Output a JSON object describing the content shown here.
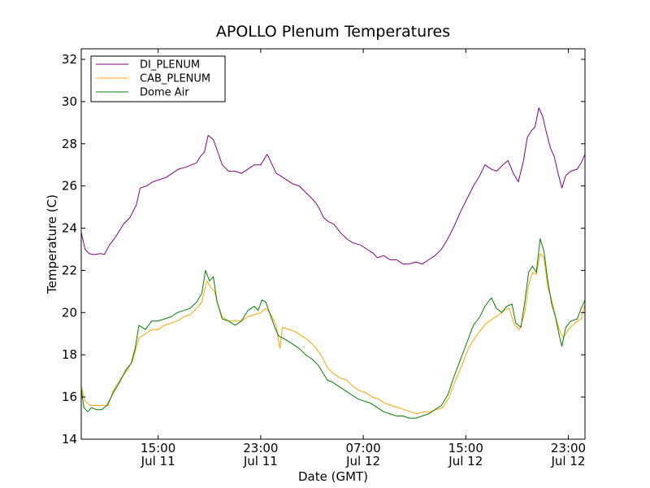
{
  "chart_data": {
    "type": "line",
    "title": "APOLLO Plenum Temperatures",
    "xlabel": "Date (GMT)",
    "ylabel": "Temperature (C)",
    "x_unit": "hours since Jul 11 09:00",
    "xlim": [
      0,
      39.3
    ],
    "ylim": [
      14,
      32.5
    ],
    "yticks": [
      14,
      16,
      18,
      20,
      22,
      24,
      26,
      28,
      30,
      32
    ],
    "xticks": [
      {
        "value": 6,
        "time": "15:00",
        "date": "Jul 11"
      },
      {
        "value": 14,
        "time": "23:00",
        "date": "Jul 11"
      },
      {
        "value": 22,
        "time": "07:00",
        "date": "Jul 12"
      },
      {
        "value": 30,
        "time": "15:00",
        "date": "Jul 12"
      },
      {
        "value": 38,
        "time": "23:00",
        "date": "Jul 12"
      }
    ],
    "legend_position": "top-left",
    "series": [
      {
        "name": "DI_PLENUM",
        "color": "#800080",
        "points": [
          [
            0,
            23.8
          ],
          [
            0.3,
            23.0
          ],
          [
            0.6,
            22.8
          ],
          [
            1.0,
            22.75
          ],
          [
            1.5,
            22.8
          ],
          [
            1.8,
            22.75
          ],
          [
            2.2,
            23.2
          ],
          [
            2.7,
            23.6
          ],
          [
            3.3,
            24.2
          ],
          [
            3.8,
            24.5
          ],
          [
            4.3,
            25.1
          ],
          [
            4.6,
            25.9
          ],
          [
            5.1,
            26.0
          ],
          [
            5.6,
            26.2
          ],
          [
            6.1,
            26.3
          ],
          [
            6.6,
            26.4
          ],
          [
            7.1,
            26.6
          ],
          [
            7.6,
            26.8
          ],
          [
            8.2,
            26.9
          ],
          [
            8.6,
            27.0
          ],
          [
            9.0,
            27.1
          ],
          [
            9.3,
            27.4
          ],
          [
            9.6,
            27.6
          ],
          [
            9.9,
            28.4
          ],
          [
            10.3,
            28.2
          ],
          [
            10.6,
            27.7
          ],
          [
            11.0,
            27.0
          ],
          [
            11.5,
            26.7
          ],
          [
            12.0,
            26.7
          ],
          [
            12.5,
            26.6
          ],
          [
            13.0,
            26.8
          ],
          [
            13.5,
            27.0
          ],
          [
            14.0,
            27.0
          ],
          [
            14.5,
            27.5
          ],
          [
            14.9,
            27.0
          ],
          [
            15.2,
            26.6
          ],
          [
            15.5,
            26.5
          ],
          [
            16.0,
            26.3
          ],
          [
            16.5,
            26.1
          ],
          [
            17.0,
            26.0
          ],
          [
            17.5,
            25.7
          ],
          [
            18.0,
            25.4
          ],
          [
            18.3,
            25.2
          ],
          [
            18.6,
            24.9
          ],
          [
            18.9,
            24.5
          ],
          [
            19.3,
            24.3
          ],
          [
            19.7,
            24.2
          ],
          [
            20.2,
            23.8
          ],
          [
            20.7,
            23.5
          ],
          [
            21.2,
            23.3
          ],
          [
            21.8,
            23.2
          ],
          [
            22.3,
            23.0
          ],
          [
            22.8,
            22.8
          ],
          [
            23.1,
            22.6
          ],
          [
            23.6,
            22.7
          ],
          [
            24.1,
            22.5
          ],
          [
            24.6,
            22.5
          ],
          [
            25.1,
            22.3
          ],
          [
            25.6,
            22.3
          ],
          [
            26.1,
            22.4
          ],
          [
            26.6,
            22.3
          ],
          [
            27.1,
            22.5
          ],
          [
            27.6,
            22.7
          ],
          [
            28.1,
            23.0
          ],
          [
            28.6,
            23.5
          ],
          [
            29.1,
            24.1
          ],
          [
            29.6,
            24.8
          ],
          [
            30.1,
            25.4
          ],
          [
            30.6,
            26.0
          ],
          [
            31.1,
            26.5
          ],
          [
            31.5,
            27.0
          ],
          [
            32.0,
            26.8
          ],
          [
            32.4,
            26.7
          ],
          [
            32.9,
            27.0
          ],
          [
            33.3,
            27.2
          ],
          [
            33.7,
            26.6
          ],
          [
            34.1,
            26.2
          ],
          [
            34.5,
            27.2
          ],
          [
            34.8,
            28.3
          ],
          [
            35.1,
            28.6
          ],
          [
            35.4,
            28.8
          ],
          [
            35.7,
            29.7
          ],
          [
            36.0,
            29.3
          ],
          [
            36.3,
            28.5
          ],
          [
            36.6,
            27.8
          ],
          [
            36.9,
            27.4
          ],
          [
            37.2,
            26.6
          ],
          [
            37.5,
            25.9
          ],
          [
            37.8,
            26.5
          ],
          [
            38.2,
            26.7
          ],
          [
            38.7,
            26.8
          ],
          [
            39.0,
            27.1
          ],
          [
            39.3,
            27.5
          ]
        ]
      },
      {
        "name": "CAB_PLENUM",
        "color": "#ffa500",
        "points": [
          [
            0,
            16.5
          ],
          [
            0.3,
            15.8
          ],
          [
            0.7,
            15.6
          ],
          [
            1.2,
            15.6
          ],
          [
            1.7,
            15.6
          ],
          [
            2.1,
            15.6
          ],
          [
            2.5,
            16.3
          ],
          [
            3.0,
            16.8
          ],
          [
            3.5,
            17.2
          ],
          [
            4.0,
            17.7
          ],
          [
            4.5,
            18.8
          ],
          [
            5.0,
            19.0
          ],
          [
            5.5,
            19.2
          ],
          [
            6.0,
            19.2
          ],
          [
            6.5,
            19.4
          ],
          [
            7.0,
            19.5
          ],
          [
            7.5,
            19.6
          ],
          [
            8.0,
            19.8
          ],
          [
            8.5,
            19.9
          ],
          [
            9.0,
            20.2
          ],
          [
            9.4,
            20.5
          ],
          [
            9.8,
            21.5
          ],
          [
            10.1,
            21.2
          ],
          [
            10.4,
            21.0
          ],
          [
            10.7,
            20.3
          ],
          [
            11.0,
            19.8
          ],
          [
            11.5,
            19.6
          ],
          [
            12.0,
            19.6
          ],
          [
            12.5,
            19.6
          ],
          [
            13.0,
            19.8
          ],
          [
            13.5,
            19.9
          ],
          [
            14.0,
            20.0
          ],
          [
            14.4,
            20.2
          ],
          [
            14.8,
            19.9
          ],
          [
            15.2,
            19.4
          ],
          [
            15.5,
            18.3
          ],
          [
            15.7,
            19.3
          ],
          [
            16.2,
            19.2
          ],
          [
            16.7,
            19.1
          ],
          [
            17.2,
            18.9
          ],
          [
            17.7,
            18.7
          ],
          [
            18.2,
            18.4
          ],
          [
            18.7,
            18.0
          ],
          [
            19.2,
            17.4
          ],
          [
            19.7,
            17.1
          ],
          [
            20.2,
            16.9
          ],
          [
            20.7,
            16.8
          ],
          [
            21.2,
            16.5
          ],
          [
            21.7,
            16.3
          ],
          [
            22.2,
            16.2
          ],
          [
            22.7,
            16.0
          ],
          [
            23.2,
            15.9
          ],
          [
            23.7,
            15.7
          ],
          [
            24.2,
            15.6
          ],
          [
            24.7,
            15.5
          ],
          [
            25.2,
            15.4
          ],
          [
            25.7,
            15.3
          ],
          [
            26.2,
            15.2
          ],
          [
            26.7,
            15.3
          ],
          [
            27.2,
            15.3
          ],
          [
            27.7,
            15.4
          ],
          [
            28.2,
            15.5
          ],
          [
            28.7,
            16.0
          ],
          [
            29.2,
            16.8
          ],
          [
            29.7,
            17.5
          ],
          [
            30.2,
            18.3
          ],
          [
            30.7,
            18.8
          ],
          [
            31.2,
            19.2
          ],
          [
            31.6,
            19.5
          ],
          [
            32.1,
            19.7
          ],
          [
            32.6,
            19.9
          ],
          [
            33.0,
            20.1
          ],
          [
            33.4,
            20.2
          ],
          [
            33.8,
            19.4
          ],
          [
            34.2,
            19.2
          ],
          [
            34.6,
            20.0
          ],
          [
            34.9,
            21.3
          ],
          [
            35.2,
            21.9
          ],
          [
            35.5,
            21.8
          ],
          [
            35.8,
            22.8
          ],
          [
            36.1,
            22.6
          ],
          [
            36.4,
            21.2
          ],
          [
            36.7,
            20.6
          ],
          [
            37.0,
            19.8
          ],
          [
            37.3,
            19.2
          ],
          [
            37.6,
            18.8
          ],
          [
            38.0,
            19.2
          ],
          [
            38.5,
            19.5
          ],
          [
            39.0,
            19.7
          ],
          [
            39.3,
            20.4
          ]
        ]
      },
      {
        "name": "Dome Air",
        "color": "#008000",
        "points": [
          [
            0,
            16.4
          ],
          [
            0.2,
            15.5
          ],
          [
            0.5,
            15.3
          ],
          [
            0.8,
            15.5
          ],
          [
            1.2,
            15.4
          ],
          [
            1.6,
            15.4
          ],
          [
            2.0,
            15.6
          ],
          [
            2.5,
            16.2
          ],
          [
            3.0,
            16.7
          ],
          [
            3.5,
            17.3
          ],
          [
            3.9,
            17.6
          ],
          [
            4.2,
            18.3
          ],
          [
            4.5,
            19.4
          ],
          [
            5.0,
            19.2
          ],
          [
            5.5,
            19.6
          ],
          [
            6.0,
            19.6
          ],
          [
            6.5,
            19.7
          ],
          [
            7.0,
            19.8
          ],
          [
            7.5,
            20.0
          ],
          [
            8.0,
            20.1
          ],
          [
            8.5,
            20.2
          ],
          [
            9.0,
            20.5
          ],
          [
            9.4,
            20.9
          ],
          [
            9.7,
            22.0
          ],
          [
            10.0,
            21.5
          ],
          [
            10.3,
            21.7
          ],
          [
            10.6,
            20.5
          ],
          [
            11.0,
            19.7
          ],
          [
            11.5,
            19.6
          ],
          [
            12.0,
            19.4
          ],
          [
            12.5,
            19.6
          ],
          [
            13.0,
            20.1
          ],
          [
            13.5,
            20.3
          ],
          [
            13.8,
            20.1
          ],
          [
            14.1,
            20.6
          ],
          [
            14.4,
            20.5
          ],
          [
            14.8,
            19.8
          ],
          [
            15.1,
            19.3
          ],
          [
            15.4,
            18.9
          ],
          [
            15.7,
            18.8
          ],
          [
            16.0,
            18.7
          ],
          [
            16.5,
            18.5
          ],
          [
            17.0,
            18.3
          ],
          [
            17.5,
            18.0
          ],
          [
            18.0,
            17.8
          ],
          [
            18.5,
            17.5
          ],
          [
            18.9,
            17.1
          ],
          [
            19.2,
            16.8
          ],
          [
            19.6,
            16.7
          ],
          [
            20.1,
            16.5
          ],
          [
            20.6,
            16.3
          ],
          [
            21.1,
            16.1
          ],
          [
            21.6,
            15.9
          ],
          [
            22.1,
            15.8
          ],
          [
            22.6,
            15.7
          ],
          [
            23.1,
            15.5
          ],
          [
            23.6,
            15.3
          ],
          [
            24.1,
            15.2
          ],
          [
            24.6,
            15.1
          ],
          [
            25.1,
            15.1
          ],
          [
            25.6,
            15.0
          ],
          [
            26.1,
            15.0
          ],
          [
            26.6,
            15.1
          ],
          [
            27.1,
            15.2
          ],
          [
            27.6,
            15.4
          ],
          [
            28.1,
            15.6
          ],
          [
            28.6,
            16.1
          ],
          [
            29.1,
            17.0
          ],
          [
            29.6,
            17.8
          ],
          [
            30.1,
            18.6
          ],
          [
            30.6,
            19.4
          ],
          [
            31.1,
            19.8
          ],
          [
            31.5,
            20.3
          ],
          [
            32.0,
            20.7
          ],
          [
            32.4,
            20.2
          ],
          [
            32.8,
            20.0
          ],
          [
            33.2,
            20.3
          ],
          [
            33.6,
            20.4
          ],
          [
            33.9,
            19.5
          ],
          [
            34.3,
            19.3
          ],
          [
            34.6,
            20.5
          ],
          [
            34.9,
            21.9
          ],
          [
            35.2,
            22.2
          ],
          [
            35.5,
            21.9
          ],
          [
            35.8,
            23.5
          ],
          [
            36.1,
            22.9
          ],
          [
            36.4,
            21.5
          ],
          [
            36.7,
            20.4
          ],
          [
            37.0,
            19.8
          ],
          [
            37.3,
            18.9
          ],
          [
            37.5,
            18.4
          ],
          [
            37.8,
            19.3
          ],
          [
            38.2,
            19.6
          ],
          [
            38.7,
            19.7
          ],
          [
            39.0,
            20.2
          ],
          [
            39.3,
            20.6
          ]
        ]
      }
    ]
  }
}
